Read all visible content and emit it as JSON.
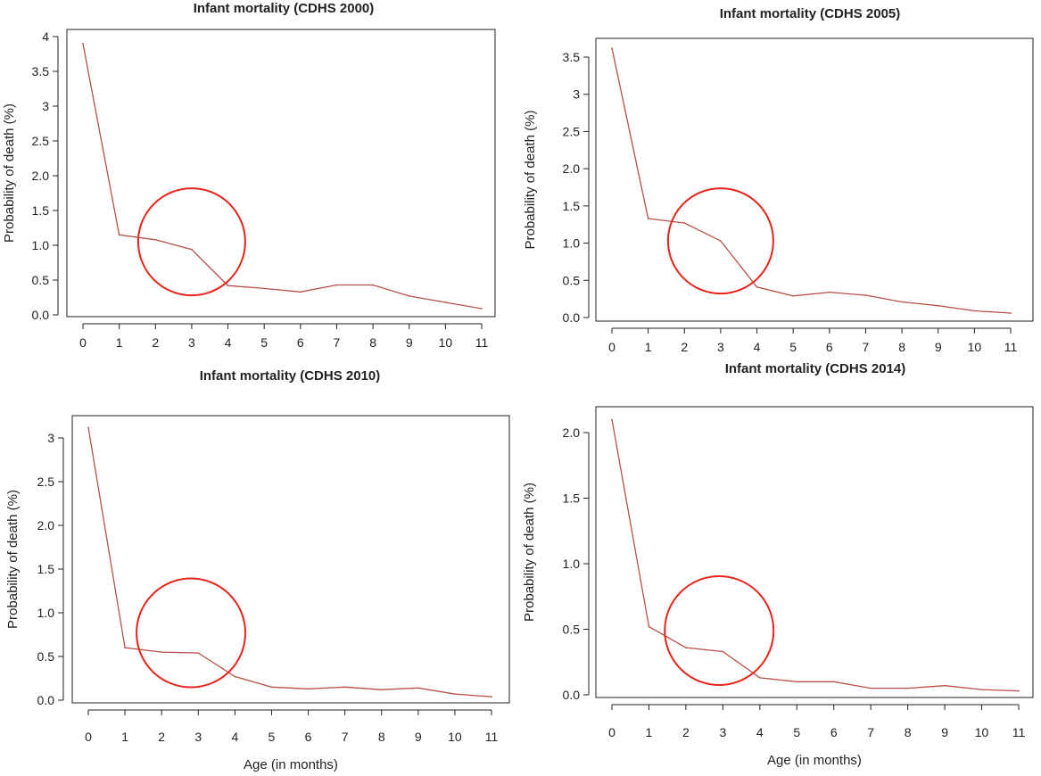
{
  "colors": {
    "series_line": "#b8504a",
    "highlight_circle": "#e8231a",
    "frame": "#222222"
  },
  "chart_data": [
    {
      "type": "line",
      "title": "Infant mortality (CDHS 2000)",
      "xlabel": "",
      "ylabel": "Probability of death (%)",
      "x": [
        0,
        1,
        2,
        3,
        4,
        5,
        6,
        7,
        8,
        9,
        10,
        11
      ],
      "x_ticks": [
        "0",
        "1",
        "2",
        "3",
        "4",
        "5",
        "6",
        "7",
        "8",
        "9",
        "10",
        "11"
      ],
      "y_ticks": [
        "0.0",
        "0.5",
        "1.0",
        "1.5",
        "2.0",
        "2.5",
        "3",
        "3.5",
        "4"
      ],
      "ylim": [
        0,
        4
      ],
      "series": [
        {
          "values": [
            3.9,
            1.15,
            1.08,
            0.94,
            0.42,
            0.38,
            0.33,
            0.43,
            0.43,
            0.27,
            0.18,
            0.09
          ]
        }
      ],
      "highlight": {
        "x": 3,
        "y": 1.05
      }
    },
    {
      "type": "line",
      "title": "Infant mortality (CDHS 2005)",
      "xlabel": "",
      "ylabel": "Probability of death (%)",
      "x": [
        0,
        1,
        2,
        3,
        4,
        5,
        6,
        7,
        8,
        9,
        10,
        11
      ],
      "x_ticks": [
        "0",
        "1",
        "2",
        "3",
        "4",
        "5",
        "6",
        "7",
        "8",
        "9",
        "10",
        "11"
      ],
      "y_ticks": [
        "0.0",
        "0.5",
        "1.0",
        "1.5",
        "2.0",
        "2.5",
        "3",
        "3.5"
      ],
      "ylim": [
        0,
        3.6
      ],
      "series": [
        {
          "values": [
            3.62,
            1.33,
            1.27,
            1.03,
            0.41,
            0.29,
            0.34,
            0.3,
            0.21,
            0.16,
            0.09,
            0.06
          ]
        }
      ],
      "highlight": {
        "x": 3,
        "y": 1.03
      }
    },
    {
      "type": "line",
      "title": "Infant mortality (CDHS 2010)",
      "xlabel": "Age (in months)",
      "ylabel": "Probability of death (%)",
      "x": [
        0,
        1,
        2,
        3,
        4,
        5,
        6,
        7,
        8,
        9,
        10,
        11
      ],
      "x_ticks": [
        "0",
        "1",
        "2",
        "3",
        "4",
        "5",
        "6",
        "7",
        "8",
        "9",
        "10",
        "11"
      ],
      "y_ticks": [
        "0.0",
        "0.5",
        "1.0",
        "1.5",
        "2.0",
        "2.5",
        "3"
      ],
      "ylim": [
        0,
        3.2
      ],
      "series": [
        {
          "values": [
            3.12,
            0.6,
            0.55,
            0.54,
            0.27,
            0.15,
            0.13,
            0.15,
            0.12,
            0.14,
            0.07,
            0.04
          ]
        }
      ],
      "highlight": {
        "x": 2.8,
        "y": 0.77
      }
    },
    {
      "type": "line",
      "title": "Infant mortality (CDHS 2014)",
      "xlabel": "Age (in months)",
      "ylabel": "Probability of death (%)",
      "x": [
        0,
        1,
        2,
        3,
        4,
        5,
        6,
        7,
        8,
        9,
        10,
        11
      ],
      "x_ticks": [
        "0",
        "1",
        "2",
        "3",
        "4",
        "5",
        "6",
        "7",
        "8",
        "9",
        "10",
        "11"
      ],
      "y_ticks": [
        "0.0",
        "0.5",
        "1.0",
        "1.5",
        "2.0"
      ],
      "ylim": [
        0,
        2.2
      ],
      "series": [
        {
          "values": [
            2.1,
            0.52,
            0.36,
            0.33,
            0.13,
            0.1,
            0.1,
            0.05,
            0.05,
            0.07,
            0.04,
            0.03
          ]
        }
      ],
      "highlight": {
        "x": 2.9,
        "y": 0.49
      }
    }
  ]
}
